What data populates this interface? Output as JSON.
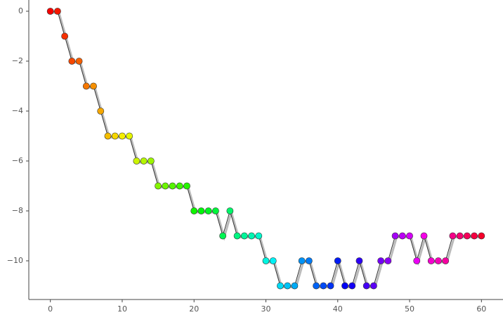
{
  "chart_data": {
    "type": "line",
    "x": [
      0,
      1,
      2,
      3,
      4,
      5,
      6,
      7,
      8,
      9,
      10,
      11,
      12,
      13,
      14,
      15,
      16,
      17,
      18,
      19,
      20,
      21,
      22,
      23,
      24,
      25,
      26,
      27,
      28,
      29,
      30,
      31,
      32,
      33,
      34,
      35,
      36,
      37,
      38,
      39,
      40,
      41,
      42,
      43,
      44,
      45,
      46,
      47,
      48,
      49,
      50,
      51,
      52,
      53,
      54,
      55,
      56,
      57,
      58,
      59,
      60
    ],
    "series": [
      {
        "values": [
          0,
          0,
          -1,
          -2,
          -2,
          -3,
          -3,
          -4,
          -5,
          -5,
          -5,
          -5,
          -6,
          -6,
          -6,
          -7,
          -7,
          -7,
          -7,
          -7,
          -8,
          -8,
          -8,
          -8,
          -9,
          -8,
          -9,
          -9,
          -9,
          -9,
          -10,
          -10,
          -11,
          -11,
          -11,
          -10,
          -10,
          -11,
          -11,
          -11,
          -10,
          -11,
          -11,
          -10,
          -11,
          -11,
          -10,
          -10,
          -9,
          -9,
          -9,
          -10,
          -9,
          -10,
          -10,
          -10,
          -9,
          -9,
          -9,
          -9,
          -9
        ],
        "color": "#333333",
        "colormap": "hsv"
      }
    ],
    "xlim": [
      -3,
      63
    ],
    "ylim": [
      -11.55,
      0.45
    ],
    "xticks": [
      0,
      10,
      20,
      30,
      40,
      50,
      60
    ],
    "yticks": [
      {
        "value": -10,
        "label": "−10"
      },
      {
        "value": -8,
        "label": "−8"
      },
      {
        "value": -6,
        "label": "−6"
      },
      {
        "value": -4,
        "label": "−4"
      },
      {
        "value": -2,
        "label": "−2"
      },
      0
    ]
  }
}
